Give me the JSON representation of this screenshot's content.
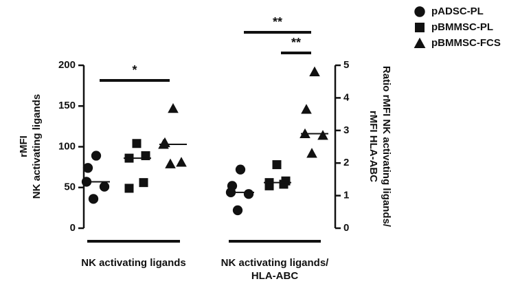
{
  "chart_data": {
    "type": "scatter",
    "ylabel": [
      "rMFI",
      "NK activating ligands"
    ],
    "y2label": [
      "Ratio rMFI  NK activating ligands/",
      "rMFI HLA-ABC"
    ],
    "ylim": [
      0,
      200
    ],
    "yticks": [
      0,
      50,
      100,
      150,
      200
    ],
    "y2lim": [
      0,
      5
    ],
    "y2ticks": [
      0,
      1,
      2,
      3,
      4,
      5
    ],
    "series": [
      {
        "name": "pADSC-PL",
        "marker": "circle",
        "color": "#111111"
      },
      {
        "name": "pBMMSC-PL",
        "marker": "square",
        "color": "#111111"
      },
      {
        "name": "pBMMSC-FCS",
        "marker": "triangle",
        "color": "#111111"
      }
    ],
    "groups": [
      {
        "category": "NK activating ligands",
        "axis": "y",
        "values": [
          [
            89,
            74,
            57,
            51,
            36
          ],
          [
            104,
            89,
            86,
            56,
            49
          ],
          [
            147,
            105,
            103,
            81,
            79
          ]
        ],
        "medians": [
          57,
          86,
          103
        ]
      },
      {
        "category": "NK activating ligands/ HLA-ABC",
        "axis": "y2",
        "values": [
          [
            1.8,
            1.3,
            1.1,
            1.05,
            0.55
          ],
          [
            1.95,
            1.45,
            1.4,
            1.35,
            1.3
          ],
          [
            4.8,
            3.65,
            2.9,
            2.85,
            2.3
          ]
        ],
        "medians": [
          1.1,
          1.4,
          2.9
        ]
      }
    ],
    "annotations": [
      {
        "text": "*",
        "group": 0,
        "from": 0,
        "to": 2
      },
      {
        "text": "**",
        "group": 1,
        "from": 0,
        "to": 2
      },
      {
        "text": "**",
        "group": 1,
        "from": 1,
        "to": 2
      }
    ]
  }
}
